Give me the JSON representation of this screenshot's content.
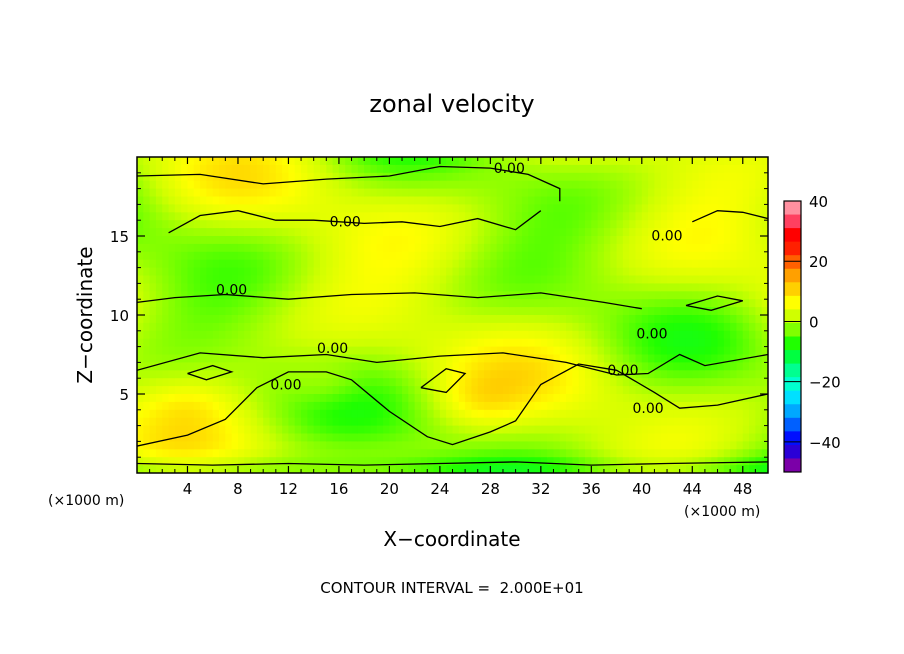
{
  "chart_data": {
    "type": "heatmap",
    "title": "zonal velocity",
    "xlabel": "X−coordinate",
    "ylabel": "Z−coordinate",
    "x_unit": "(×1000 m)",
    "y_unit": "(×1000 m)",
    "xlim": [
      0,
      50
    ],
    "ylim": [
      0,
      20
    ],
    "x_ticks": [
      4,
      8,
      12,
      16,
      20,
      24,
      28,
      32,
      36,
      40,
      44,
      48
    ],
    "y_ticks": [
      5,
      10,
      15
    ],
    "colorbar": {
      "range": [
        -50,
        40
      ],
      "ticks": [
        40,
        20,
        0,
        -20,
        -40
      ],
      "tick_labels": [
        "40",
        "20",
        "0",
        "−20",
        "−40"
      ],
      "colors": [
        "#7b00a8",
        "#2a00d6",
        "#0010ff",
        "#0060ff",
        "#00a8ff",
        "#00e0ff",
        "#00ffd0",
        "#00ff90",
        "#00ff40",
        "#20ff00",
        "#80ff00",
        "#d0ff00",
        "#ffff00",
        "#ffd000",
        "#ffa000",
        "#ff6000",
        "#ff2000",
        "#ff0000",
        "#ff4060",
        "#ff90a0"
      ]
    },
    "field_range": [
      -10,
      12
    ],
    "contour_interval": 20,
    "contour_labels": [
      {
        "x": 29.5,
        "z": 19.0,
        "text": "0.00"
      },
      {
        "x": 16.5,
        "z": 15.6,
        "text": "0.00"
      },
      {
        "x": 7.5,
        "z": 11.3,
        "text": "0.00"
      },
      {
        "x": 15.5,
        "z": 7.6,
        "text": "0.00"
      },
      {
        "x": 11.8,
        "z": 5.3,
        "text": "0.00"
      },
      {
        "x": 42.0,
        "z": 14.7,
        "text": "0.00"
      },
      {
        "x": 40.8,
        "z": 8.5,
        "text": "0.00"
      },
      {
        "x": 38.5,
        "z": 6.2,
        "text": "0.00"
      },
      {
        "x": 40.5,
        "z": 3.8,
        "text": "0.00"
      }
    ],
    "contour_lines": [
      [
        [
          0,
          18.8
        ],
        [
          5,
          18.9
        ],
        [
          10,
          18.3
        ],
        [
          15,
          18.6
        ],
        [
          20,
          18.8
        ],
        [
          24,
          19.4
        ],
        [
          28,
          19.3
        ],
        [
          31,
          18.9
        ],
        [
          33.5,
          18.0
        ],
        [
          33.5,
          17.2
        ]
      ],
      [
        [
          2.5,
          15.2
        ],
        [
          5,
          16.3
        ],
        [
          8,
          16.6
        ],
        [
          11,
          16.0
        ],
        [
          14,
          16.0
        ],
        [
          18,
          15.8
        ],
        [
          21,
          15.9
        ],
        [
          24,
          15.6
        ],
        [
          27,
          16.1
        ],
        [
          30,
          15.4
        ],
        [
          32,
          16.6
        ]
      ],
      [
        [
          0,
          10.8
        ],
        [
          3,
          11.1
        ],
        [
          7,
          11.3
        ],
        [
          12,
          11.0
        ],
        [
          17,
          11.3
        ],
        [
          22,
          11.4
        ],
        [
          27,
          11.1
        ],
        [
          32,
          11.4
        ],
        [
          37,
          10.8
        ],
        [
          40,
          10.4
        ]
      ],
      [
        [
          0,
          6.5
        ],
        [
          5,
          7.6
        ],
        [
          10,
          7.3
        ],
        [
          15,
          7.5
        ],
        [
          19,
          7.0
        ],
        [
          24,
          7.4
        ],
        [
          29,
          7.6
        ],
        [
          34,
          7.0
        ],
        [
          38,
          6.2
        ],
        [
          40.5,
          6.3
        ],
        [
          43,
          7.5
        ],
        [
          45,
          6.8
        ],
        [
          50,
          7.5
        ]
      ],
      [
        [
          44,
          15.9
        ],
        [
          46,
          16.6
        ],
        [
          48,
          16.5
        ],
        [
          50,
          16.1
        ]
      ],
      [
        [
          0,
          1.7
        ],
        [
          4,
          2.4
        ],
        [
          7,
          3.4
        ],
        [
          9.5,
          5.4
        ],
        [
          12,
          6.4
        ],
        [
          15,
          6.4
        ],
        [
          17,
          5.9
        ],
        [
          20,
          3.9
        ],
        [
          23,
          2.3
        ],
        [
          25,
          1.8
        ],
        [
          28,
          2.6
        ],
        [
          30,
          3.3
        ],
        [
          32,
          5.6
        ],
        [
          35,
          6.9
        ],
        [
          38,
          6.5
        ],
        [
          41,
          5.1
        ],
        [
          43,
          4.1
        ],
        [
          46,
          4.3
        ],
        [
          50,
          5.0
        ]
      ],
      [
        [
          0,
          0.6
        ],
        [
          6,
          0.5
        ],
        [
          12,
          0.6
        ],
        [
          18,
          0.5
        ],
        [
          24,
          0.6
        ],
        [
          30,
          0.7
        ],
        [
          36,
          0.5
        ],
        [
          42,
          0.6
        ],
        [
          50,
          0.7
        ]
      ],
      [
        [
          22.5,
          5.4
        ],
        [
          24.5,
          6.6
        ],
        [
          26,
          6.3
        ],
        [
          24.5,
          5.1
        ],
        [
          22.5,
          5.4
        ]
      ],
      [
        [
          43.5,
          10.6
        ],
        [
          46,
          11.2
        ],
        [
          48,
          10.9
        ],
        [
          45.5,
          10.3
        ],
        [
          43.5,
          10.6
        ]
      ],
      [
        [
          4,
          6.3
        ],
        [
          6,
          6.8
        ],
        [
          7.5,
          6.4
        ],
        [
          5.5,
          5.9
        ],
        [
          4,
          6.3
        ]
      ]
    ]
  },
  "footer": {
    "contour_interval_text": "CONTOUR INTERVAL =  2.000E+01"
  }
}
